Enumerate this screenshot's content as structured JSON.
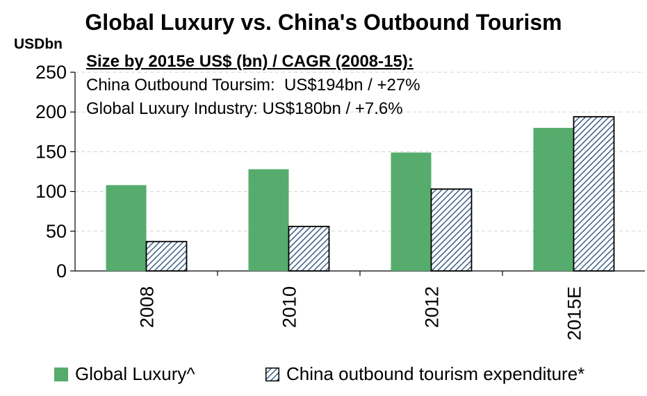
{
  "chart_data": {
    "type": "bar",
    "title": "Global Luxury vs. China's Outbound Tourism",
    "ylabel": "USDbn",
    "xlabel": "",
    "ylim": [
      0,
      250
    ],
    "yticks": [
      0,
      50,
      100,
      150,
      200,
      250
    ],
    "categories": [
      "2008",
      "2010",
      "2012",
      "2015E"
    ],
    "series": [
      {
        "name": "Global Luxury^",
        "values": [
          108,
          128,
          149,
          180
        ],
        "color": "#55ac6c",
        "pattern": "solid"
      },
      {
        "name": "China outbound tourism expenditure*",
        "values": [
          37,
          56,
          103,
          194
        ],
        "color": "#dce6f2",
        "pattern": "hatched"
      }
    ],
    "annotation": {
      "heading": "Size by 2015e US$ (bn) / CAGR (2008-15):",
      "lines": [
        "China Outbound Toursim:  US$194bn / +27%",
        "Global Luxury Industry: US$180bn / +7.6%"
      ]
    },
    "grid": true,
    "legend_position": "bottom"
  }
}
